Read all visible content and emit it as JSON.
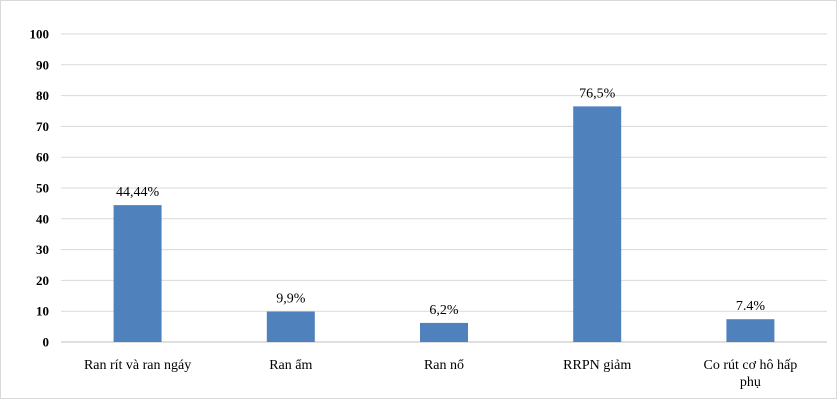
{
  "chart_data": {
    "type": "bar",
    "categories": [
      "Ran rít và ran ngáy",
      "Ran ẩm",
      "Ran nổ",
      "RRPN giảm",
      "Co rút cơ hô hấp phụ"
    ],
    "category_lines": [
      [
        "Ran rít và ran ngáy"
      ],
      [
        "Ran ẩm"
      ],
      [
        "Ran nổ"
      ],
      [
        "RRPN giảm"
      ],
      [
        "Co rút cơ hô hấp",
        "phụ"
      ]
    ],
    "values": [
      44.44,
      9.9,
      6.2,
      76.5,
      7.4
    ],
    "data_labels": [
      "44,44%",
      "9,9%",
      "6,2%",
      "76,5%",
      "7.4%"
    ],
    "yticks": [
      "0",
      "10",
      "20",
      "30",
      "40",
      "50",
      "60",
      "70",
      "80",
      "90",
      "100"
    ],
    "ylim": [
      0,
      100
    ],
    "grid": true,
    "bar_color": "#4f81bd",
    "grid_color": "#d9d9d9",
    "axis_color": "#bfbfbf"
  }
}
